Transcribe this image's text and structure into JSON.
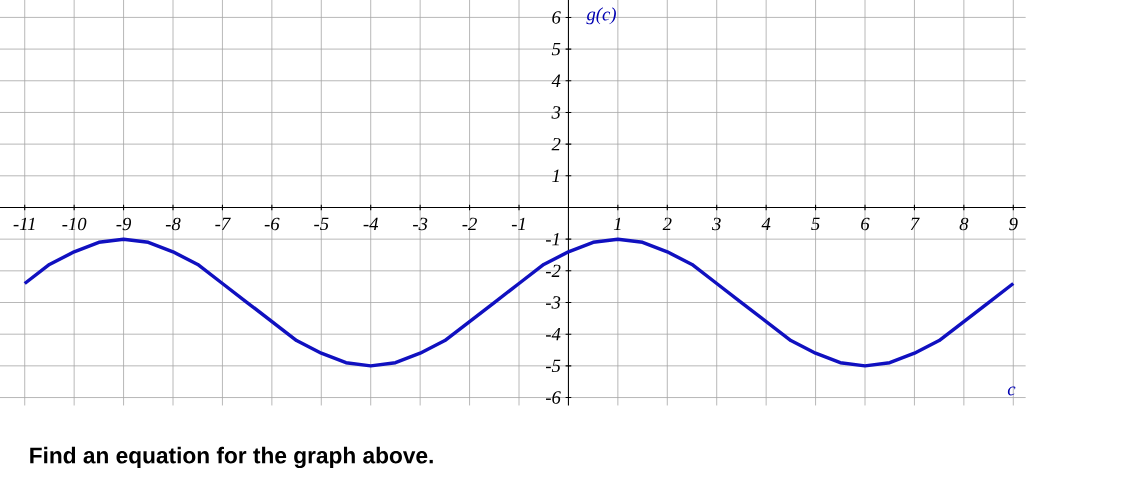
{
  "chart_data": {
    "type": "line",
    "xlabel": "c",
    "ylabel": "g(c)",
    "xlim": [
      -11.5,
      9.25
    ],
    "ylim": [
      -6.25,
      6.55
    ],
    "xticks": [
      -11,
      -10,
      -9,
      -8,
      -7,
      -6,
      -5,
      -4,
      -3,
      -2,
      -1,
      1,
      2,
      3,
      4,
      5,
      6,
      7,
      8,
      9
    ],
    "yticks": [
      -6,
      -5,
      -4,
      -3,
      -2,
      -1,
      1,
      2,
      3,
      4,
      5,
      6
    ],
    "grid": true,
    "x": [
      -11,
      -10.5,
      -10,
      -9.5,
      -9,
      -8.5,
      -8,
      -7.5,
      -7,
      -6.5,
      -6,
      -5.5,
      -5,
      -4.5,
      -4,
      -3.5,
      -3,
      -2.5,
      -2,
      -1.5,
      -1,
      -0.5,
      0,
      0.5,
      1,
      1.5,
      2,
      2.5,
      3,
      3.5,
      4,
      4.5,
      5,
      5.5,
      6,
      6.5,
      7,
      7.5,
      8,
      8.5,
      9
    ],
    "series": [
      {
        "color": "#1010c0",
        "values": [
          -2.4,
          -1.8,
          -1.4,
          -1.1,
          -1,
          -1.1,
          -1.4,
          -1.8,
          -2.4,
          -3,
          -3.6,
          -4.2,
          -4.6,
          -4.9,
          -5,
          -4.9,
          -4.6,
          -4.2,
          -3.6,
          -3,
          -2.4,
          -1.8,
          -1.4,
          -1.1,
          -1,
          -1.1,
          -1.4,
          -1.8,
          -2.4,
          -3,
          -3.6,
          -4.2,
          -4.6,
          -4.9,
          -5,
          -4.9,
          -4.6,
          -4.2,
          -3.6,
          -3,
          -2.4
        ]
      }
    ],
    "annotations": [
      "Find an equation for the graph above."
    ]
  }
}
